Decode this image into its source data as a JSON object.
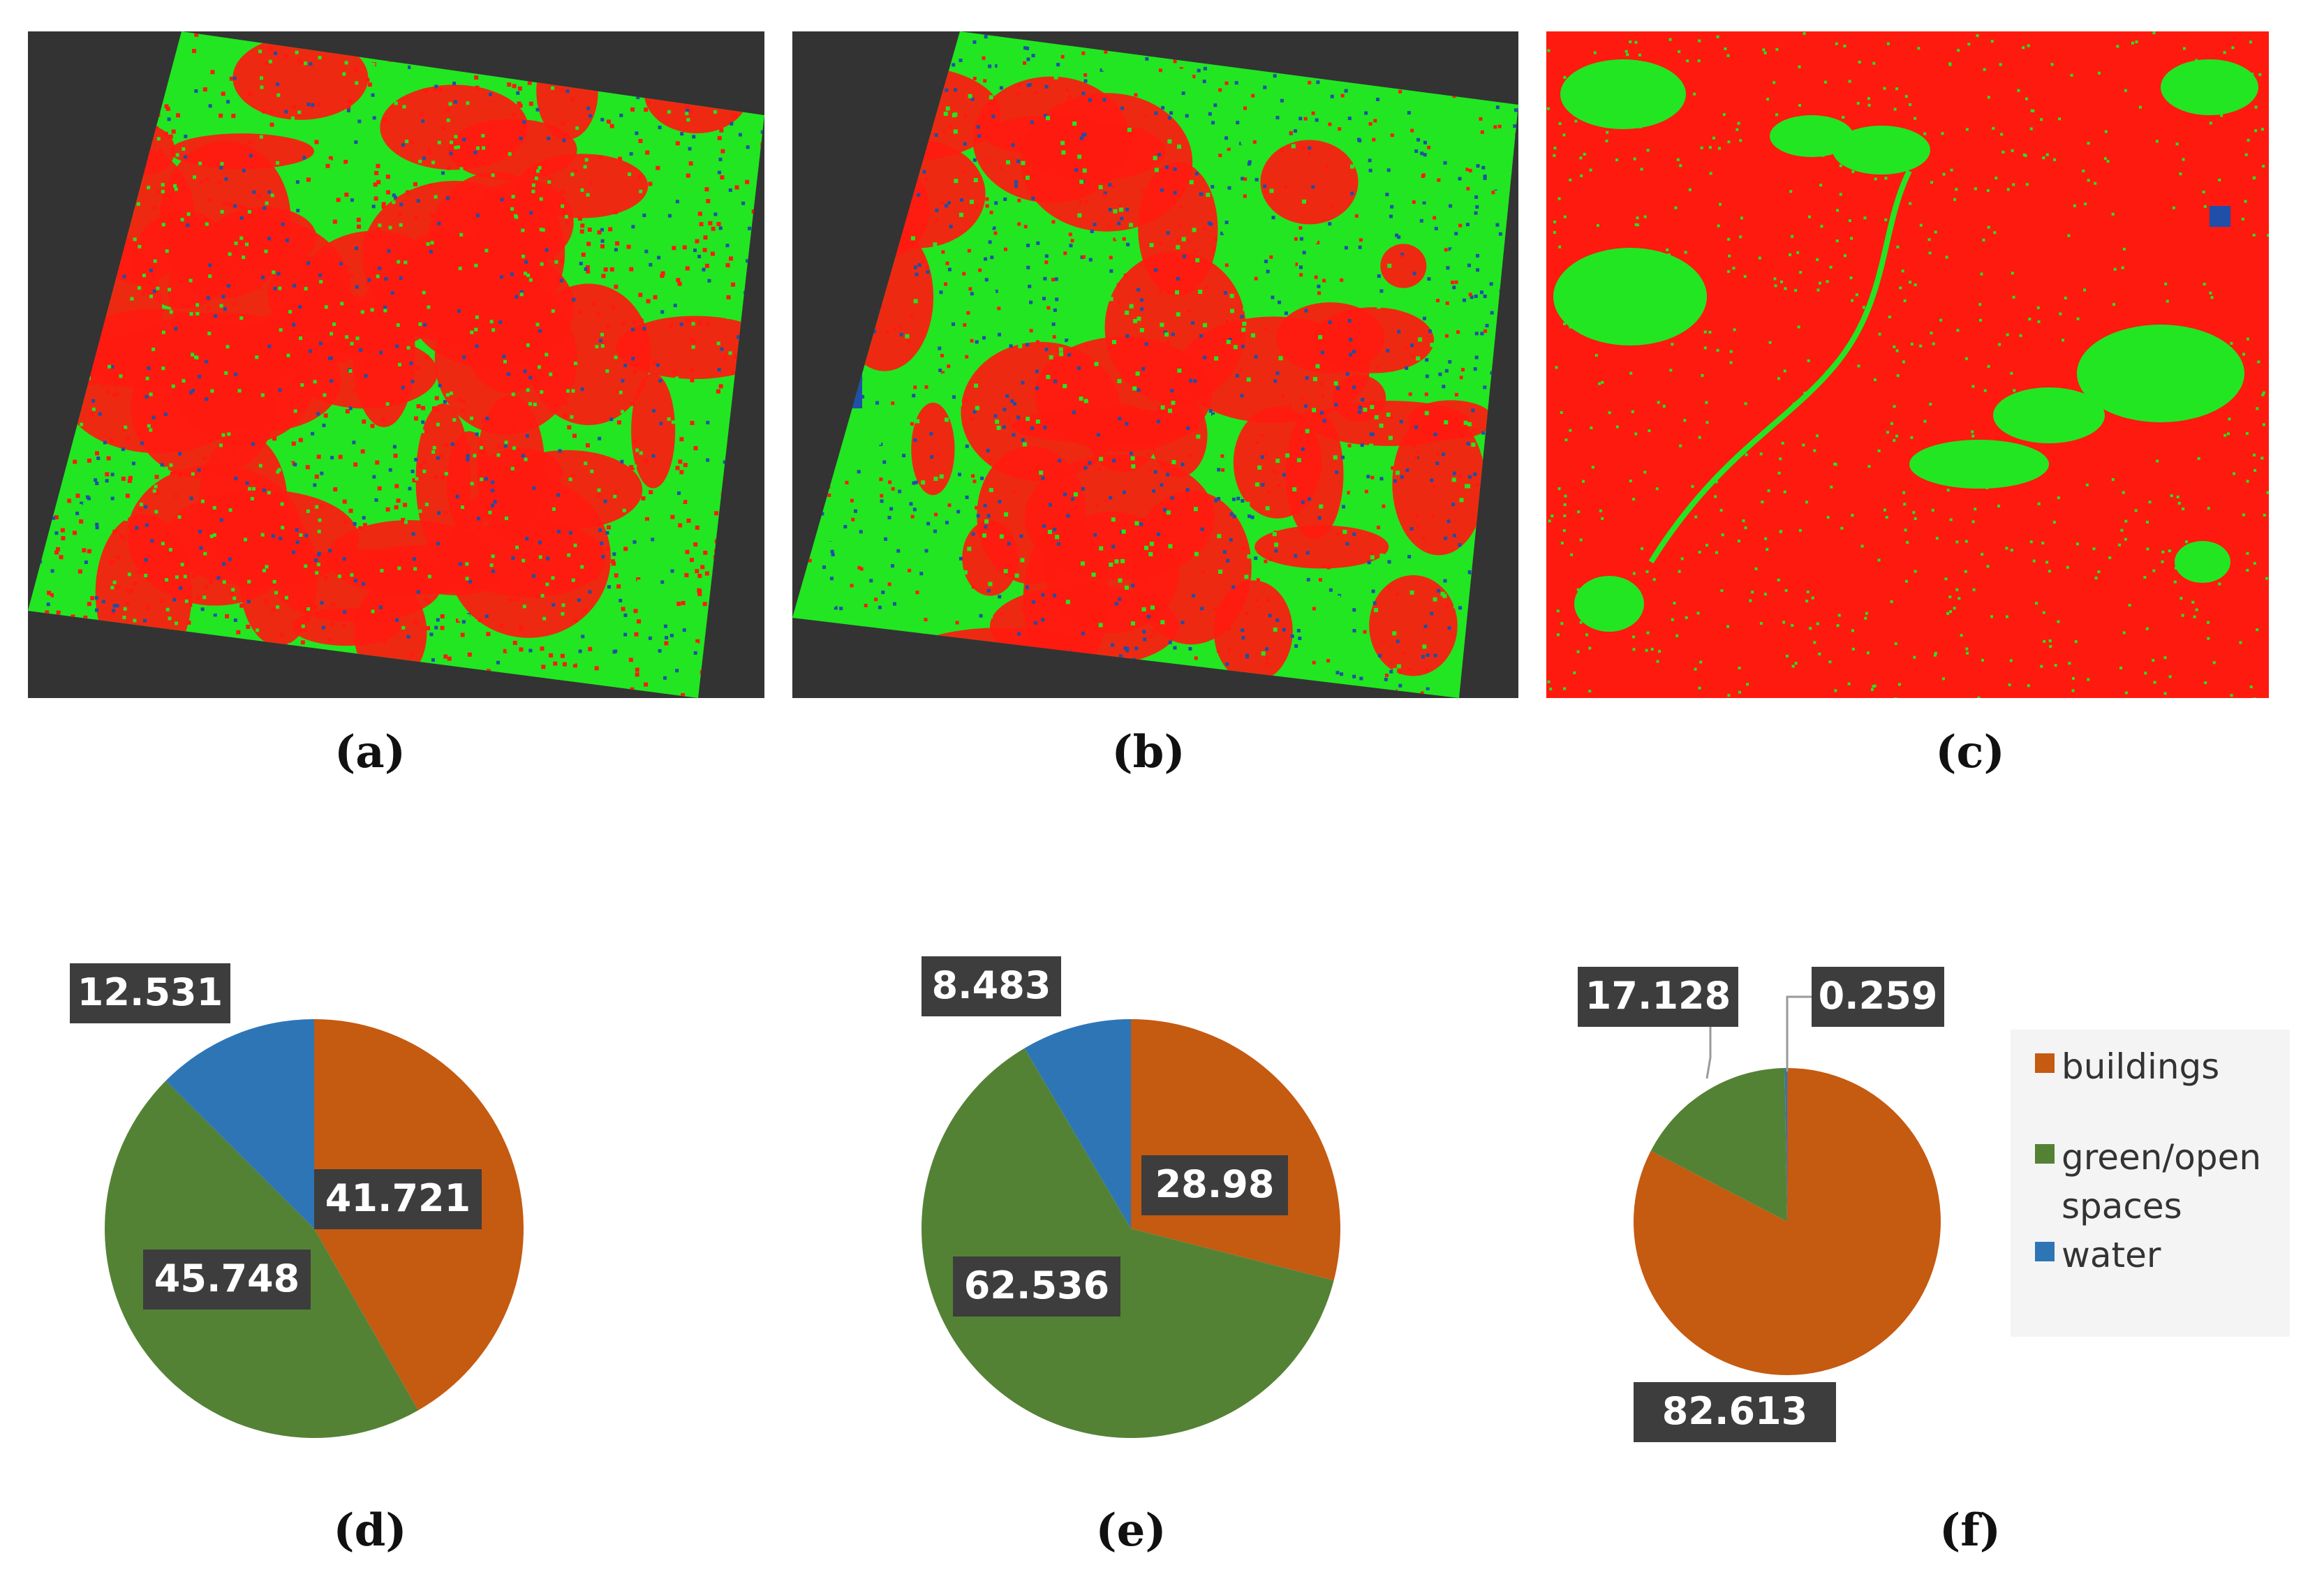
{
  "colors": {
    "map_red": "#ff1a10",
    "map_green": "#22e622",
    "map_blue": "#1f4fa8",
    "map_bg": "#333333",
    "buildings": "#c55a11",
    "green": "#548235",
    "water": "#2e75b6",
    "label_bg": "#3d3d3d",
    "label_text": "#ffffff"
  },
  "panels": {
    "a": {
      "caption": "(a)"
    },
    "b": {
      "caption": "(b)"
    },
    "c": {
      "caption": "(c)"
    },
    "d": {
      "caption": "(d)"
    },
    "e": {
      "caption": "(e)"
    },
    "f": {
      "caption": "(f)"
    }
  },
  "legend": {
    "items": [
      {
        "label": "buildings",
        "color": "#c55a11"
      },
      {
        "label": "green/open spaces",
        "color": "#548235"
      },
      {
        "label": "water",
        "color": "#2e75b6"
      }
    ]
  },
  "chart_data": [
    {
      "type": "pie",
      "panel": "d",
      "categories": [
        "buildings",
        "green/open spaces",
        "water"
      ],
      "values": [
        41.721,
        45.748,
        12.531
      ],
      "labels": [
        "41.721",
        "45.748",
        "12.531"
      ]
    },
    {
      "type": "pie",
      "panel": "e",
      "categories": [
        "buildings",
        "green/open spaces",
        "water"
      ],
      "values": [
        28.98,
        62.536,
        8.483
      ],
      "labels": [
        "28.98",
        "62.536",
        "8.483"
      ]
    },
    {
      "type": "pie",
      "panel": "f",
      "categories": [
        "buildings",
        "green/open spaces",
        "water"
      ],
      "values": [
        82.613,
        17.128,
        0.259
      ],
      "labels": [
        "82.613",
        "17.128",
        "0.259"
      ],
      "legend": "right"
    }
  ]
}
